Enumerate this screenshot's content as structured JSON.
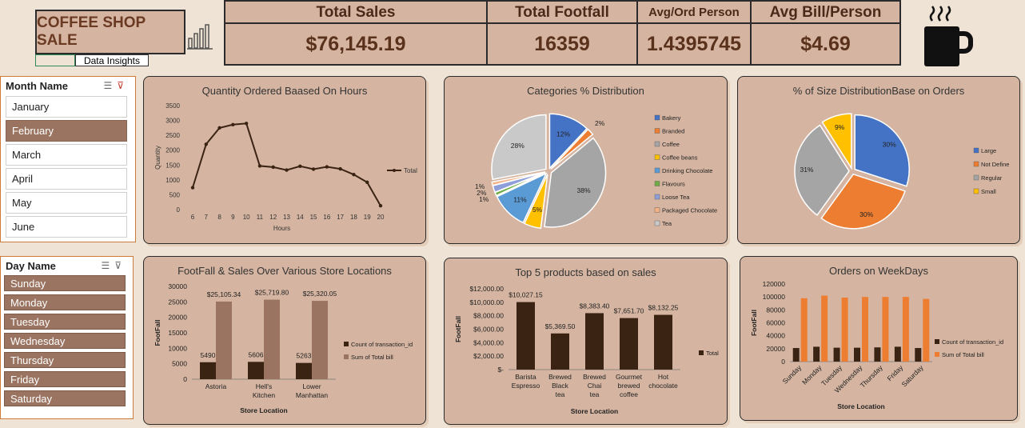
{
  "header": {
    "title": "COFFEE SHOP SALE",
    "insights_label": "Data Insights"
  },
  "kpis": [
    {
      "label": "Total Sales",
      "value": "$76,145.19"
    },
    {
      "label": "Total Footfall",
      "value": "16359"
    },
    {
      "label": "Avg/Ord Person",
      "value": "1.4395745"
    },
    {
      "label": "Avg Bill/Person",
      "value": "$4.69"
    }
  ],
  "month_slicer": {
    "title": "Month Name",
    "items": [
      "January",
      "February",
      "March",
      "April",
      "May",
      "June"
    ],
    "selected": "February"
  },
  "day_slicer": {
    "title": "Day Name",
    "items": [
      "Sunday",
      "Monday",
      "Tuesday",
      "Wednesday",
      "Thursday",
      "Friday",
      "Saturday"
    ]
  },
  "chart_data": [
    {
      "type": "line",
      "title": "Quantity Ordered Baased On Hours",
      "xlabel": "Hours",
      "ylabel": "Quantity",
      "x": [
        6,
        7,
        8,
        9,
        10,
        11,
        12,
        13,
        14,
        15,
        16,
        17,
        18,
        19,
        20
      ],
      "series": [
        {
          "name": "Total",
          "values": [
            740,
            2200,
            2750,
            2860,
            2900,
            1470,
            1430,
            1330,
            1460,
            1360,
            1440,
            1370,
            1180,
            920,
            130
          ]
        }
      ],
      "ylim": [
        0,
        3500
      ],
      "yticks": [
        0,
        500,
        1000,
        1500,
        2000,
        2500,
        3000,
        3500
      ],
      "color": "#3b2314",
      "legend": "right"
    },
    {
      "type": "pie",
      "title": "Categories % Distribution",
      "labels": [
        "Bakery",
        "Branded",
        "Coffee",
        "Coffee beans",
        "Drinking Chocolate",
        "Flavours",
        "Loose Tea",
        "Packaged Chocolate",
        "Tea"
      ],
      "values": [
        12,
        2,
        38,
        5,
        11,
        1,
        2,
        1,
        28
      ],
      "value_labels": [
        "12%",
        "2%",
        "38%",
        "5%",
        "11%",
        "1%",
        "2%",
        "1%",
        "28%"
      ],
      "colors": [
        "#4472c4",
        "#ed7d31",
        "#a5a5a5",
        "#ffc000",
        "#5b9bd5",
        "#70ad47",
        "#8e9ed8",
        "#f4b183",
        "#c9c9c9"
      ],
      "legend": "right"
    },
    {
      "type": "pie",
      "title": "% of Size DistributionBase on Orders",
      "labels": [
        "Large",
        "Not Define",
        "Regular",
        "Small"
      ],
      "values": [
        30,
        30,
        31,
        9
      ],
      "value_labels": [
        "30%",
        "30%",
        "31%",
        "9%"
      ],
      "colors": [
        "#4472c4",
        "#ed7d31",
        "#a5a5a5",
        "#ffc000"
      ],
      "legend": "right"
    },
    {
      "type": "bar",
      "title": "FootFall & Sales  Over Various Store Locations",
      "xlabel": "Store Location",
      "ylabel": "FootFall",
      "categories": [
        "Astoria",
        "Hell's Kitchen",
        "Lower Manhattan"
      ],
      "series": [
        {
          "name": "Count of transaction_id",
          "values": [
            5490,
            5606,
            5263
          ],
          "labels": [
            "5490",
            "5606",
            "5263"
          ],
          "color": "#3b2314"
        },
        {
          "name": "Sum of Total bill",
          "values": [
            25105.34,
            25719.8,
            25320.05
          ],
          "labels": [
            "$25,105.34",
            "$25,719.80",
            "$25,320.05"
          ],
          "color": "#9a7461"
        }
      ],
      "ylim": [
        0,
        30000
      ],
      "yticks": [
        0,
        5000,
        10000,
        15000,
        20000,
        25000,
        30000
      ],
      "legend": "right"
    },
    {
      "type": "bar",
      "title": "Top 5 products based on sales",
      "xlabel": "Store Location",
      "ylabel": "FootFall",
      "categories": [
        "Barista Espresso",
        "Brewed Black tea",
        "Brewed Chai tea",
        "Gourmet brewed coffee",
        "Hot chocolate"
      ],
      "series": [
        {
          "name": "Total",
          "values": [
            10027.15,
            5369.5,
            8383.4,
            7651.7,
            8132.25
          ],
          "labels": [
            "$10,027.15",
            "$5,369.50",
            "$8,383.40",
            "$7,651.70",
            "$8,132.25"
          ],
          "color": "#3b2314"
        }
      ],
      "ylim": [
        0,
        12000
      ],
      "yticks": [
        0,
        2000,
        4000,
        6000,
        8000,
        10000,
        12000
      ],
      "ytick_labels": [
        "$-",
        "$2,000.00",
        "$4,000.00",
        "$6,000.00",
        "$8,000.00",
        "$10,000.00",
        "$12,000.00"
      ],
      "legend": "right"
    },
    {
      "type": "bar",
      "title": "Orders on WeekDays",
      "xlabel": "Store Location",
      "ylabel": "FootFall",
      "categories": [
        "Sunday",
        "Monday",
        "Tuesday",
        "Wednesday",
        "Thursday",
        "Friday",
        "Saturday"
      ],
      "series": [
        {
          "name": "Count of transaction_id",
          "values": [
            21000,
            23000,
            21500,
            21500,
            22000,
            23000,
            21000
          ],
          "color": "#3b2314"
        },
        {
          "name": "Sum of Total bill",
          "values": [
            98000,
            102000,
            99000,
            100000,
            100000,
            100000,
            97000
          ],
          "color": "#ed7d31"
        }
      ],
      "ylim": [
        0,
        120000
      ],
      "yticks": [
        0,
        20000,
        40000,
        60000,
        80000,
        100000,
        120000
      ],
      "legend": "right"
    }
  ]
}
